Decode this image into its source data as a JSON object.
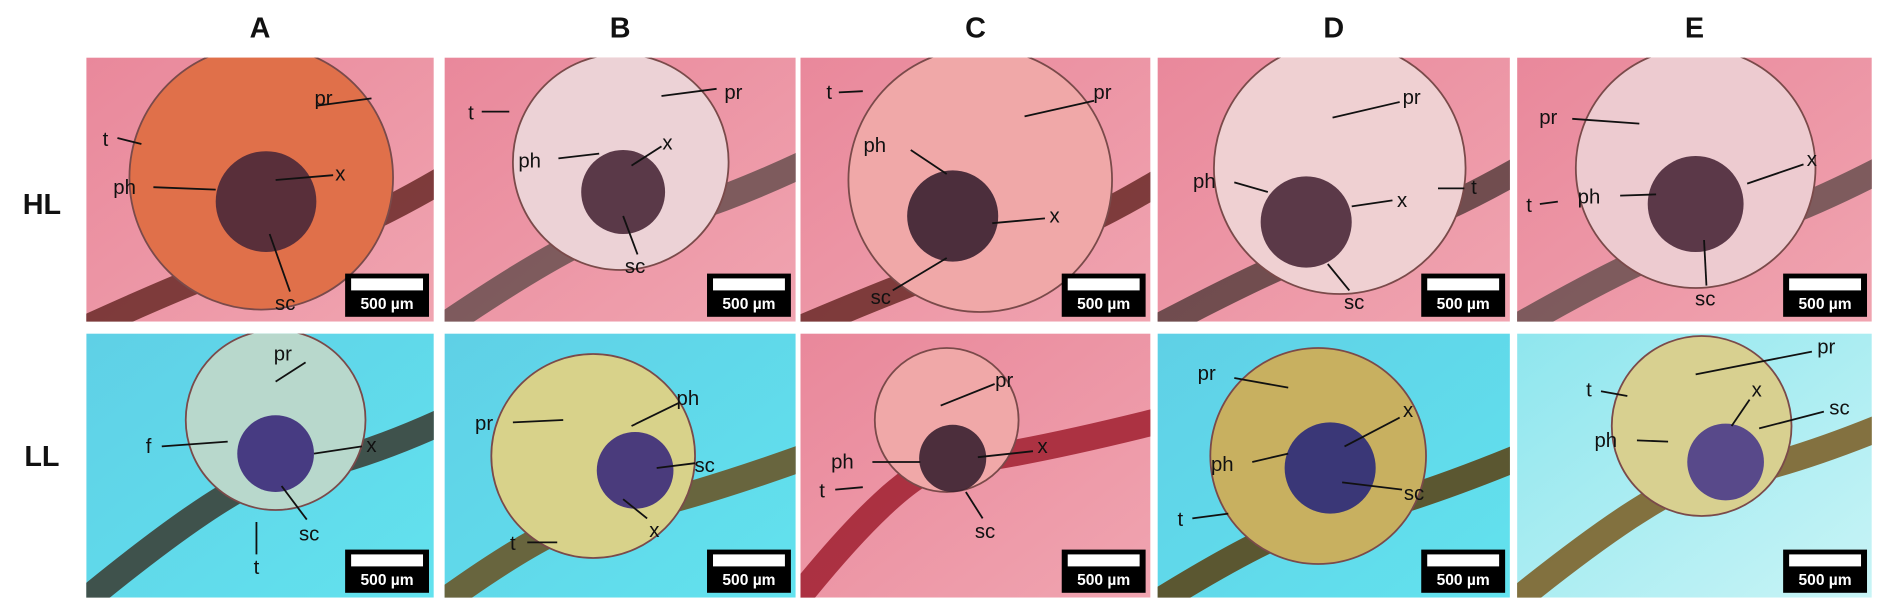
{
  "columns": [
    "A",
    "B",
    "C",
    "D",
    "E"
  ],
  "rows": [
    "HL",
    "LL"
  ],
  "panels": [
    {
      "labels": [
        "pr",
        "t",
        "ph",
        "x",
        "sc"
      ],
      "scale_bar": "500 µm"
    },
    {
      "labels": [
        "pr",
        "t",
        "ph",
        "x",
        "sc"
      ],
      "scale_bar": "500 µm"
    },
    {
      "labels": [
        "t",
        "pr",
        "ph",
        "x",
        "sc"
      ],
      "scale_bar": "500 µm"
    },
    {
      "labels": [
        "pr",
        "ph",
        "x",
        "t",
        "sc"
      ],
      "scale_bar": "500 µm"
    },
    {
      "labels": [
        "pr",
        "x",
        "t",
        "ph",
        "sc"
      ],
      "scale_bar": "500 µm"
    },
    {
      "labels": [
        "pr",
        "f",
        "x",
        "sc",
        "t"
      ],
      "scale_bar": "500 µm"
    },
    {
      "labels": [
        "pr",
        "ph",
        "sc",
        "x",
        "t"
      ],
      "scale_bar": "500 µm"
    },
    {
      "labels": [
        "pr",
        "ph",
        "x",
        "t",
        "sc"
      ],
      "scale_bar": "500 µm"
    },
    {
      "labels": [
        "pr",
        "x",
        "ph",
        "sc",
        "t"
      ],
      "scale_bar": "500 µm"
    },
    {
      "labels": [
        "pr",
        "t",
        "x",
        "sc",
        "ph"
      ],
      "scale_bar": "500 µm"
    }
  ]
}
